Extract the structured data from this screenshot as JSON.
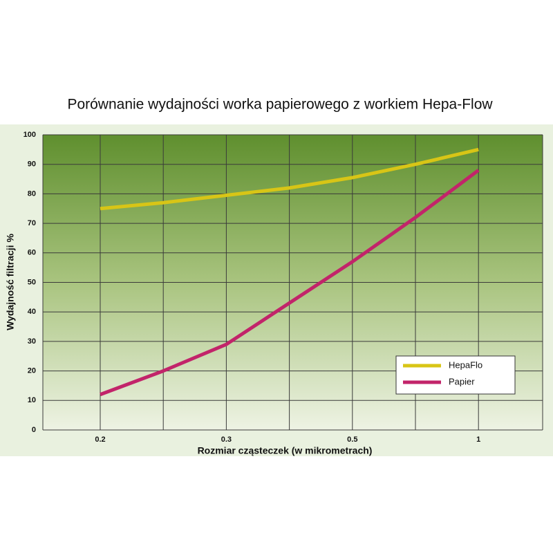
{
  "chart_data": {
    "type": "line",
    "title": "Porównanie wydajności worka papierowego z workiem Hepa-Flow",
    "x_label": "Rozmiar cząsteczek (w mikrometrach)",
    "y_label": "Wydajność filtracji %",
    "categories": [
      "0.2",
      null,
      "0.3",
      null,
      "0.5",
      null,
      "1"
    ],
    "series": [
      {
        "name": "HepaFlo",
        "color": "#d8c516",
        "values": [
          75,
          77,
          79.5,
          82,
          85.5,
          90,
          95
        ]
      },
      {
        "name": "Papier",
        "color": "#c2246a",
        "values": [
          12,
          20,
          29,
          43,
          57,
          72,
          88
        ]
      }
    ],
    "ylim": [
      0,
      100
    ],
    "yticks": [
      0,
      10,
      20,
      30,
      40,
      50,
      60,
      70,
      80,
      90,
      100
    ],
    "grid": true,
    "legend": "lower right"
  }
}
